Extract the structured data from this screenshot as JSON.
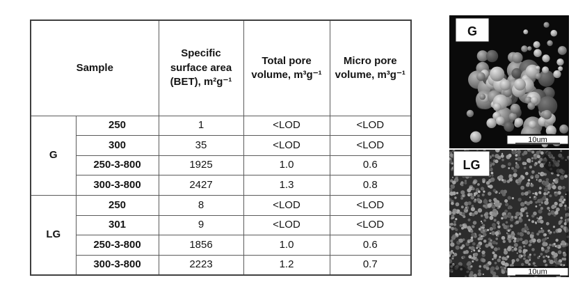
{
  "table": {
    "headers": {
      "sample": "Sample",
      "bet": "Specific surface area (BET), m²g⁻¹",
      "total_pore": "Total pore volume, m³g⁻¹",
      "micro_pore": "Micro pore volume, m³g⁻¹"
    },
    "groups": [
      {
        "label": "G",
        "rows": [
          {
            "sample": "250",
            "bet": "1",
            "total": "<LOD",
            "micro": "<LOD"
          },
          {
            "sample": "300",
            "bet": "35",
            "total": "<LOD",
            "micro": "<LOD"
          },
          {
            "sample": "250-3-800",
            "bet": "1925",
            "total": "1.0",
            "micro": "0.6"
          },
          {
            "sample": "300-3-800",
            "bet": "2427",
            "total": "1.3",
            "micro": "0.8"
          }
        ]
      },
      {
        "label": "LG",
        "rows": [
          {
            "sample": "250",
            "bet": "8",
            "total": "<LOD",
            "micro": "<LOD"
          },
          {
            "sample": "301",
            "bet": "9",
            "total": "<LOD",
            "micro": "<LOD"
          },
          {
            "sample": "250-3-800",
            "bet": "1856",
            "total": "1.0",
            "micro": "0.6"
          },
          {
            "sample": "300-3-800",
            "bet": "2223",
            "total": "1.2",
            "micro": "0.7"
          }
        ]
      }
    ]
  },
  "images": [
    {
      "label": "G",
      "scale": "10um"
    },
    {
      "label": "LG",
      "scale": "10um"
    }
  ],
  "colors": {
    "table_border_outer": "#3f3f3f",
    "table_border_inner": "#5a5a5a",
    "text": "#141414",
    "sem_g_background": "#0a0a0a",
    "sem_lg_background": "#2c2c2c"
  }
}
